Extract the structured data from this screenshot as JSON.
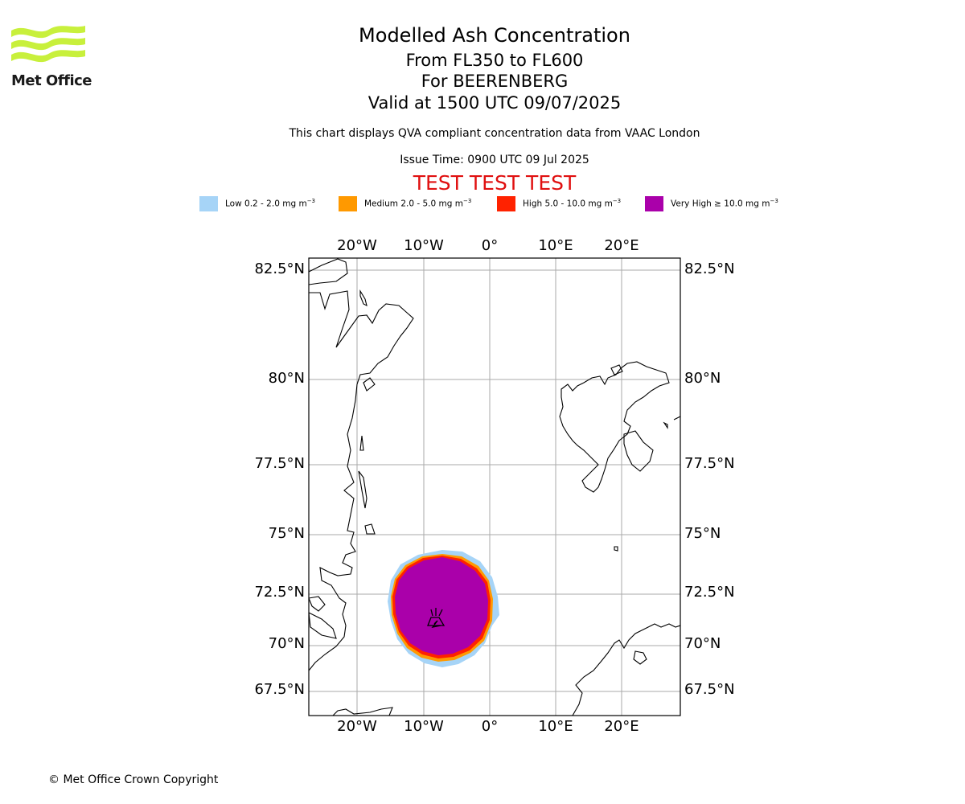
{
  "logo": {
    "text": "Met Office",
    "color": "#c8f03c"
  },
  "header": {
    "title": "Modelled Ash Concentration",
    "levels": "From FL350 to FL600",
    "volcano": "For BEERENBERG",
    "valid": "Valid at 1500 UTC 09/07/2025",
    "note": "This chart displays QVA compliant concentration data from VAAC London",
    "issue_time": "Issue Time: 0900 UTC 09 Jul 2025",
    "test_banner": "TEST TEST TEST",
    "test_color": "#e01010"
  },
  "legend": [
    {
      "label": "Low 0.2 - 2.0 mg m",
      "color": "#a6d4f7"
    },
    {
      "label": "Medium 2.0 - 5.0 mg m",
      "color": "#ff9900"
    },
    {
      "label": "High 5.0 - 10.0 mg m",
      "color": "#ff2200"
    },
    {
      "label": "Very High ≥ 10.0 mg m",
      "color": "#aa00aa"
    }
  ],
  "legend_unit_exponent": "−3",
  "map": {
    "lon_labels": [
      "20°W",
      "10°W",
      "0°",
      "10°E",
      "20°E"
    ],
    "lat_labels": [
      "82.5°N",
      "80°N",
      "77.5°N",
      "75°N",
      "72.5°N",
      "70°N",
      "67.5°N"
    ],
    "volcano_icon": "volcano-icon",
    "gridline_color": "#aaaaaa"
  },
  "footer": {
    "copyright": "© Met Office Crown Copyright"
  }
}
